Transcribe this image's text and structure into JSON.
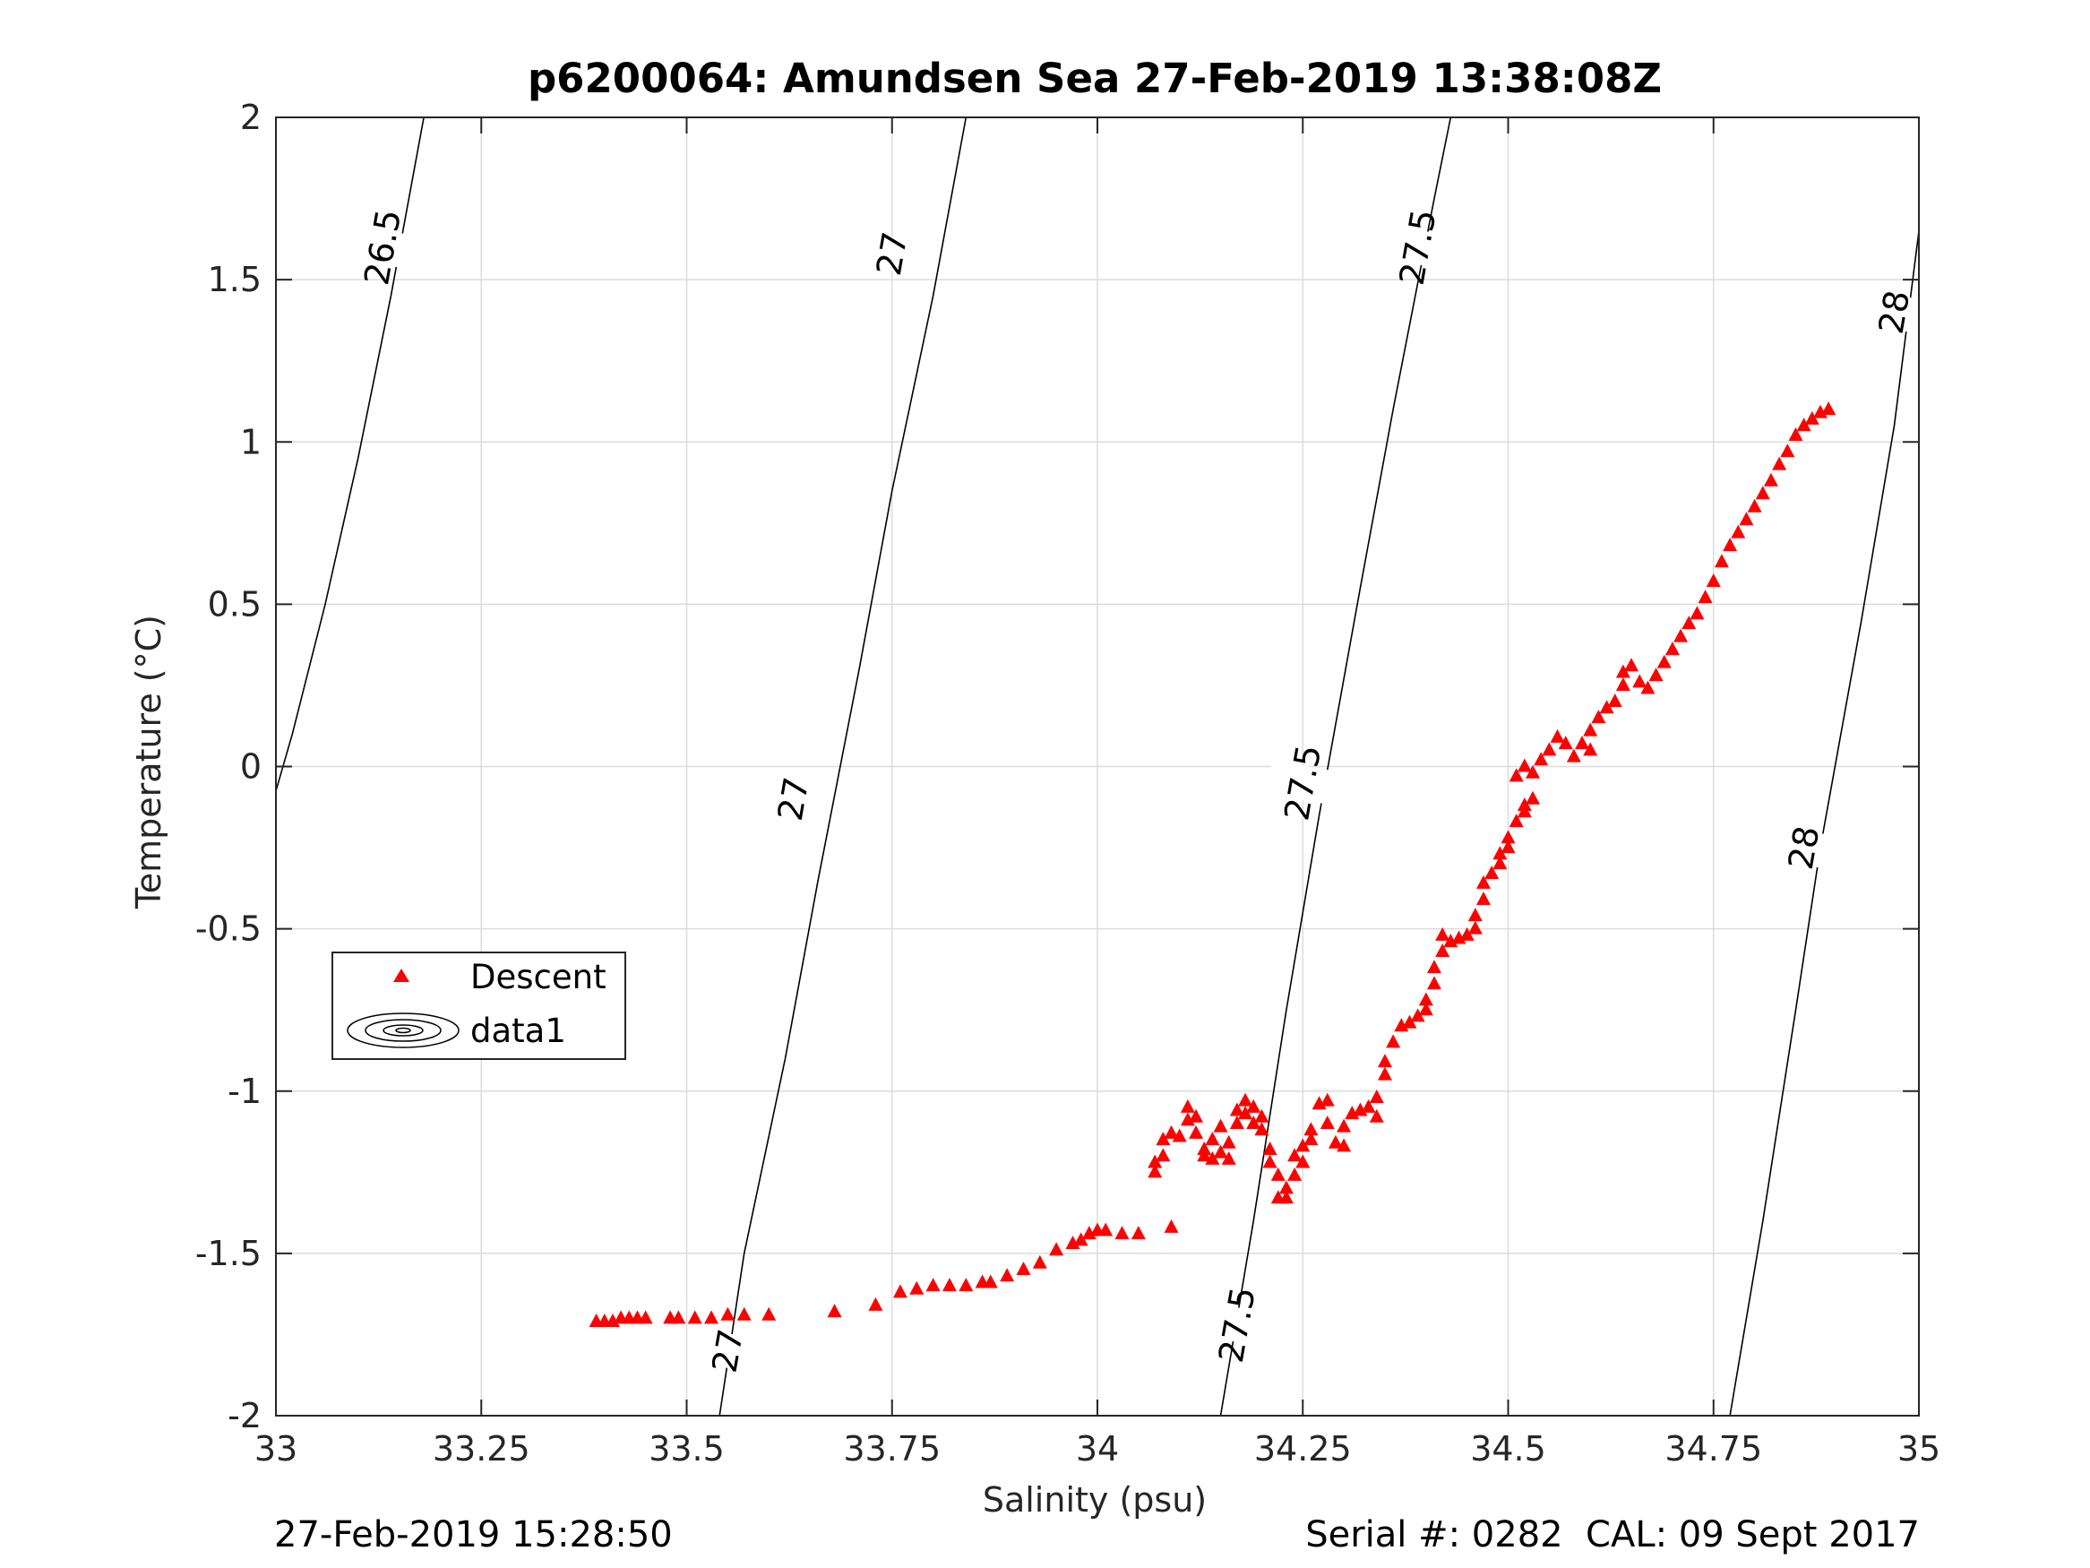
{
  "chart_data": {
    "type": "scatter",
    "title": "p6200064: Amundsen Sea 27-Feb-2019 13:38:08Z",
    "xlabel": "Salinity (psu)",
    "ylabel": "Temperature (°C)",
    "xlim": [
      33,
      35
    ],
    "ylim": [
      -2,
      2
    ],
    "xticks": [
      33,
      33.25,
      33.5,
      33.75,
      34,
      34.25,
      34.5,
      34.75,
      35
    ],
    "xtick_labels": [
      "33",
      "33.25",
      "33.5",
      "33.75",
      "34",
      "34.25",
      "34.5",
      "34.75",
      "35"
    ],
    "yticks": [
      -2,
      -1.5,
      -1,
      -0.5,
      0,
      0.5,
      1,
      1.5,
      2
    ],
    "ytick_labels": [
      "-2",
      "-1.5",
      "-1",
      "-0.5",
      "0",
      "0.5",
      "1",
      "1.5",
      "2"
    ],
    "grid": true,
    "legend_position": "middle-left",
    "series": [
      {
        "name": "Descent",
        "marker": "triangle",
        "color": "#ff0000",
        "points": [
          [
            33.39,
            -1.71
          ],
          [
            33.4,
            -1.71
          ],
          [
            33.41,
            -1.71
          ],
          [
            33.42,
            -1.7
          ],
          [
            33.43,
            -1.7
          ],
          [
            33.44,
            -1.7
          ],
          [
            33.45,
            -1.7
          ],
          [
            33.48,
            -1.7
          ],
          [
            33.49,
            -1.7
          ],
          [
            33.51,
            -1.7
          ],
          [
            33.53,
            -1.7
          ],
          [
            33.55,
            -1.69
          ],
          [
            33.57,
            -1.69
          ],
          [
            33.6,
            -1.69
          ],
          [
            33.68,
            -1.68
          ],
          [
            33.73,
            -1.66
          ],
          [
            33.76,
            -1.62
          ],
          [
            33.78,
            -1.61
          ],
          [
            33.8,
            -1.6
          ],
          [
            33.82,
            -1.6
          ],
          [
            33.84,
            -1.6
          ],
          [
            33.86,
            -1.59
          ],
          [
            33.87,
            -1.59
          ],
          [
            33.89,
            -1.57
          ],
          [
            33.91,
            -1.55
          ],
          [
            33.93,
            -1.53
          ],
          [
            33.95,
            -1.49
          ],
          [
            33.97,
            -1.47
          ],
          [
            33.98,
            -1.46
          ],
          [
            33.99,
            -1.44
          ],
          [
            34.0,
            -1.43
          ],
          [
            34.01,
            -1.43
          ],
          [
            34.03,
            -1.44
          ],
          [
            34.05,
            -1.44
          ],
          [
            34.09,
            -1.42
          ],
          [
            34.07,
            -1.25
          ],
          [
            34.07,
            -1.22
          ],
          [
            34.08,
            -1.2
          ],
          [
            34.08,
            -1.15
          ],
          [
            34.09,
            -1.13
          ],
          [
            34.1,
            -1.14
          ],
          [
            34.11,
            -1.09
          ],
          [
            34.11,
            -1.05
          ],
          [
            34.12,
            -1.08
          ],
          [
            34.12,
            -1.13
          ],
          [
            34.13,
            -1.18
          ],
          [
            34.13,
            -1.2
          ],
          [
            34.14,
            -1.21
          ],
          [
            34.14,
            -1.15
          ],
          [
            34.15,
            -1.11
          ],
          [
            34.15,
            -1.19
          ],
          [
            34.16,
            -1.21
          ],
          [
            34.16,
            -1.16
          ],
          [
            34.17,
            -1.1
          ],
          [
            34.17,
            -1.06
          ],
          [
            34.18,
            -1.03
          ],
          [
            34.18,
            -1.07
          ],
          [
            34.19,
            -1.05
          ],
          [
            34.19,
            -1.1
          ],
          [
            34.2,
            -1.08
          ],
          [
            34.2,
            -1.12
          ],
          [
            34.21,
            -1.18
          ],
          [
            34.21,
            -1.22
          ],
          [
            34.22,
            -1.26
          ],
          [
            34.22,
            -1.33
          ],
          [
            34.23,
            -1.33
          ],
          [
            34.23,
            -1.3
          ],
          [
            34.24,
            -1.26
          ],
          [
            34.24,
            -1.2
          ],
          [
            34.25,
            -1.17
          ],
          [
            34.25,
            -1.22
          ],
          [
            34.26,
            -1.12
          ],
          [
            34.26,
            -1.15
          ],
          [
            34.27,
            -1.04
          ],
          [
            34.28,
            -1.03
          ],
          [
            34.28,
            -1.1
          ],
          [
            34.29,
            -1.16
          ],
          [
            34.3,
            -1.17
          ],
          [
            34.3,
            -1.11
          ],
          [
            34.31,
            -1.07
          ],
          [
            34.32,
            -1.06
          ],
          [
            34.33,
            -1.05
          ],
          [
            34.34,
            -1.08
          ],
          [
            34.34,
            -1.02
          ],
          [
            34.35,
            -0.95
          ],
          [
            34.35,
            -0.91
          ],
          [
            34.36,
            -0.85
          ],
          [
            34.37,
            -0.8
          ],
          [
            34.38,
            -0.79
          ],
          [
            34.39,
            -0.77
          ],
          [
            34.4,
            -0.75
          ],
          [
            34.4,
            -0.72
          ],
          [
            34.41,
            -0.67
          ],
          [
            34.41,
            -0.62
          ],
          [
            34.42,
            -0.57
          ],
          [
            34.42,
            -0.52
          ],
          [
            34.43,
            -0.54
          ],
          [
            34.44,
            -0.53
          ],
          [
            34.45,
            -0.52
          ],
          [
            34.46,
            -0.5
          ],
          [
            34.46,
            -0.46
          ],
          [
            34.47,
            -0.41
          ],
          [
            34.47,
            -0.36
          ],
          [
            34.48,
            -0.33
          ],
          [
            34.49,
            -0.3
          ],
          [
            34.49,
            -0.27
          ],
          [
            34.5,
            -0.25
          ],
          [
            34.5,
            -0.22
          ],
          [
            34.51,
            -0.17
          ],
          [
            34.52,
            -0.14
          ],
          [
            34.52,
            -0.12
          ],
          [
            34.53,
            -0.1
          ],
          [
            34.51,
            -0.03
          ],
          [
            34.52,
            0.0
          ],
          [
            34.53,
            -0.02
          ],
          [
            34.54,
            0.02
          ],
          [
            34.55,
            0.05
          ],
          [
            34.56,
            0.09
          ],
          [
            34.57,
            0.07
          ],
          [
            34.58,
            0.03
          ],
          [
            34.59,
            0.07
          ],
          [
            34.6,
            0.05
          ],
          [
            34.6,
            0.11
          ],
          [
            34.61,
            0.15
          ],
          [
            34.62,
            0.18
          ],
          [
            34.63,
            0.2
          ],
          [
            34.64,
            0.25
          ],
          [
            34.64,
            0.29
          ],
          [
            34.65,
            0.31
          ],
          [
            34.66,
            0.26
          ],
          [
            34.67,
            0.24
          ],
          [
            34.68,
            0.28
          ],
          [
            34.69,
            0.32
          ],
          [
            34.7,
            0.36
          ],
          [
            34.71,
            0.4
          ],
          [
            34.72,
            0.44
          ],
          [
            34.73,
            0.47
          ],
          [
            34.74,
            0.52
          ],
          [
            34.75,
            0.57
          ],
          [
            34.76,
            0.63
          ],
          [
            34.77,
            0.68
          ],
          [
            34.78,
            0.72
          ],
          [
            34.79,
            0.76
          ],
          [
            34.8,
            0.8
          ],
          [
            34.81,
            0.84
          ],
          [
            34.82,
            0.88
          ],
          [
            34.83,
            0.93
          ],
          [
            34.84,
            0.97
          ],
          [
            34.85,
            1.02
          ],
          [
            34.86,
            1.05
          ],
          [
            34.87,
            1.07
          ],
          [
            34.88,
            1.09
          ],
          [
            34.89,
            1.1
          ]
        ]
      }
    ],
    "density_contours": {
      "name": "data1",
      "color": "#000000",
      "levels": [
        {
          "label": "26.5",
          "points": [
            [
              32.98,
              -0.25
            ],
            [
              33.02,
              0.1
            ],
            [
              33.06,
              0.5
            ],
            [
              33.1,
              0.95
            ],
            [
              33.14,
              1.45
            ],
            [
              33.18,
              2.0
            ]
          ]
        },
        {
          "label": "27",
          "points": [
            [
              33.54,
              -2.0
            ],
            [
              33.57,
              -1.5
            ],
            [
              33.62,
              -0.9
            ],
            [
              33.66,
              -0.35
            ],
            [
              33.71,
              0.3
            ],
            [
              33.75,
              0.85
            ],
            [
              33.8,
              1.45
            ],
            [
              33.84,
              2.0
            ]
          ]
        },
        {
          "label": "27.5",
          "points": [
            [
              34.15,
              -2.0
            ],
            [
              34.19,
              -1.4
            ],
            [
              34.23,
              -0.75
            ],
            [
              34.27,
              -0.15
            ],
            [
              34.32,
              0.55
            ],
            [
              34.36,
              1.1
            ],
            [
              34.41,
              1.75
            ],
            [
              34.43,
              2.0
            ]
          ]
        },
        {
          "label": "28",
          "points": [
            [
              34.77,
              -2.0
            ],
            [
              34.81,
              -1.4
            ],
            [
              34.85,
              -0.75
            ],
            [
              34.88,
              -0.25
            ],
            [
              34.93,
              0.45
            ],
            [
              34.97,
              1.05
            ],
            [
              35.0,
              1.65
            ]
          ]
        }
      ],
      "label_positions": [
        {
          "label": "26.5",
          "x": 33.13,
          "y": 1.6
        },
        {
          "label": "27",
          "x": 33.75,
          "y": 1.58
        },
        {
          "label": "27",
          "x": 33.63,
          "y": -0.1
        },
        {
          "label": "27",
          "x": 33.55,
          "y": -1.8
        },
        {
          "label": "27.5",
          "x": 34.39,
          "y": 1.6
        },
        {
          "label": "27.5",
          "x": 34.25,
          "y": -0.05
        },
        {
          "label": "27.5",
          "x": 34.17,
          "y": -1.72
        },
        {
          "label": "28",
          "x": 34.97,
          "y": 1.4
        },
        {
          "label": "28",
          "x": 34.86,
          "y": -0.25
        }
      ]
    }
  },
  "legend": {
    "items": [
      {
        "name": "Descent",
        "symbol": "triangle"
      },
      {
        "name": "data1",
        "symbol": "contour"
      }
    ]
  },
  "footer": {
    "timestamp": "27-Feb-2019 15:28:50",
    "serial": "Serial #: 0282  CAL: 09 Sept 2017"
  }
}
